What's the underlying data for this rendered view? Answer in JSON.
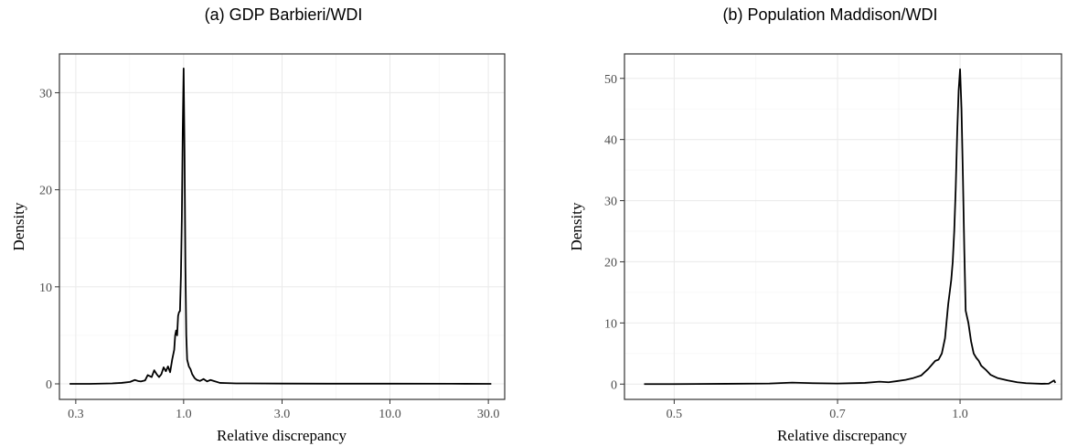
{
  "chart_data": [
    {
      "type": "line",
      "title": "(a) GDP Barbieri/WDI",
      "xlabel": "Relative discrepancy",
      "ylabel": "Density",
      "x_scale": "log",
      "xlim": [
        0.25,
        36
      ],
      "ylim": [
        -1.6,
        34
      ],
      "x_ticks": [
        0.3,
        1.0,
        3.0,
        10.0,
        30.0
      ],
      "x_tick_labels": [
        "0.3",
        "1.0",
        "3.0",
        "10.0",
        "30.0"
      ],
      "y_ticks": [
        0,
        10,
        20,
        30
      ],
      "y_tick_labels": [
        "0",
        "10",
        "20",
        "30"
      ],
      "grid": true,
      "series": [
        {
          "x": [
            0.28,
            0.35,
            0.45,
            0.5,
            0.55,
            0.58,
            0.6,
            0.62,
            0.65,
            0.67,
            0.7,
            0.72,
            0.74,
            0.76,
            0.78,
            0.8,
            0.82,
            0.84,
            0.86,
            0.88,
            0.9,
            0.91,
            0.92,
            0.93,
            0.94,
            0.95,
            0.96,
            0.97,
            0.98,
            0.99,
            1.0,
            1.01,
            1.02,
            1.03,
            1.04,
            1.06,
            1.08,
            1.1,
            1.13,
            1.16,
            1.2,
            1.25,
            1.3,
            1.35,
            1.4,
            1.5,
            1.6,
            1.8,
            2.0,
            3.0,
            5.0,
            10.0,
            20.0,
            31.0
          ],
          "values": [
            0,
            0,
            0.05,
            0.1,
            0.2,
            0.4,
            0.3,
            0.25,
            0.35,
            0.9,
            0.7,
            1.4,
            1.0,
            0.7,
            1.0,
            1.7,
            1.3,
            1.8,
            1.2,
            2.5,
            3.5,
            5.0,
            5.5,
            5.0,
            7.0,
            7.4,
            7.5,
            11.0,
            17.0,
            26.0,
            32.5,
            24.0,
            12.0,
            5.0,
            2.5,
            1.8,
            1.5,
            1.0,
            0.6,
            0.4,
            0.3,
            0.5,
            0.25,
            0.4,
            0.3,
            0.1,
            0.08,
            0.05,
            0.05,
            0.03,
            0.02,
            0.02,
            0.01,
            0.0
          ]
        }
      ]
    },
    {
      "type": "line",
      "title": "(b) Population Maddison/WDI",
      "xlabel": "Relative discrepancy",
      "ylabel": "Density",
      "x_scale": "reciprocal",
      "xlim": [
        0.46,
        1.55
      ],
      "ylim": [
        -2.5,
        54
      ],
      "x_ticks": [
        0.5,
        0.7,
        1.0
      ],
      "x_tick_labels": [
        "0.5",
        "0.7",
        "1.0"
      ],
      "y_ticks": [
        0,
        10,
        20,
        30,
        40,
        50
      ],
      "y_tick_labels": [
        "0",
        "10",
        "20",
        "30",
        "40",
        "50"
      ],
      "grid": true,
      "series": [
        {
          "x": [
            0.475,
            0.5,
            0.55,
            0.6,
            0.63,
            0.66,
            0.7,
            0.75,
            0.78,
            0.8,
            0.82,
            0.84,
            0.86,
            0.88,
            0.9,
            0.92,
            0.93,
            0.94,
            0.95,
            0.96,
            0.97,
            0.975,
            0.98,
            0.985,
            0.99,
            0.995,
            1.0,
            1.005,
            1.01,
            1.015,
            1.02,
            1.03,
            1.04,
            1.05,
            1.06,
            1.07,
            1.08,
            1.1,
            1.12,
            1.15,
            1.2,
            1.25,
            1.3,
            1.35,
            1.4,
            1.45,
            1.49,
            1.5
          ],
          "values": [
            0,
            0,
            0.05,
            0.1,
            0.25,
            0.15,
            0.1,
            0.2,
            0.4,
            0.3,
            0.5,
            0.7,
            1.0,
            1.4,
            2.5,
            3.8,
            4.0,
            5.0,
            7.5,
            13.0,
            17.0,
            20.0,
            25.0,
            32.0,
            41.0,
            48.0,
            51.5,
            45.0,
            34.0,
            22.0,
            12.0,
            10.0,
            7.0,
            5.0,
            4.3,
            3.8,
            3.0,
            2.3,
            1.5,
            1.0,
            0.6,
            0.3,
            0.15,
            0.1,
            0.05,
            0.08,
            0.6,
            0.2
          ]
        }
      ]
    }
  ]
}
